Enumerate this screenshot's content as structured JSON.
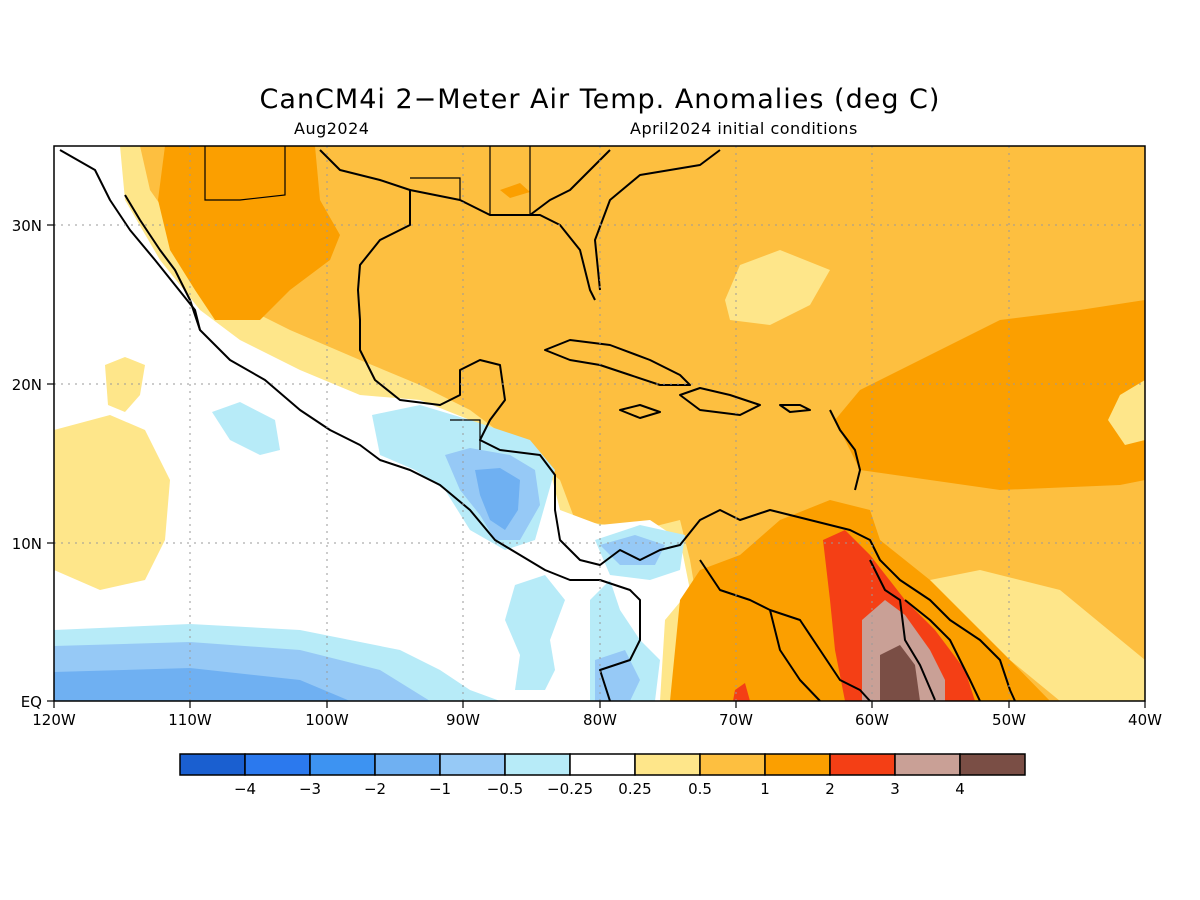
{
  "title": "CanCM4i 2−Meter Air Temp. Anomalies (deg C)",
  "subtitle_left": "Aug2024",
  "subtitle_right": "April2024 initial conditions",
  "axes": {
    "lon_ticks": [
      "120W",
      "110W",
      "100W",
      "90W",
      "80W",
      "70W",
      "60W",
      "50W",
      "40W"
    ],
    "lat_ticks": [
      "EQ",
      "10N",
      "20N",
      "30N"
    ],
    "lon_range": [
      -120,
      -40
    ],
    "lat_range": [
      0,
      35
    ],
    "grid": "dotted"
  },
  "colorbar": {
    "colors": [
      "#1a5fd0",
      "#2b79ee",
      "#3d93f2",
      "#6fb0f2",
      "#96c9f6",
      "#b7ebf8",
      "#ffffff",
      "#fee68a",
      "#fdbf40",
      "#fb9f00",
      "#f43f15",
      "#c9a096",
      "#7a4e45"
    ],
    "labels": [
      "−4",
      "−3",
      "−2",
      "−1",
      "−0.5",
      "−0.25",
      "0.25",
      "0.5",
      "1",
      "2",
      "3",
      "4"
    ]
  }
}
